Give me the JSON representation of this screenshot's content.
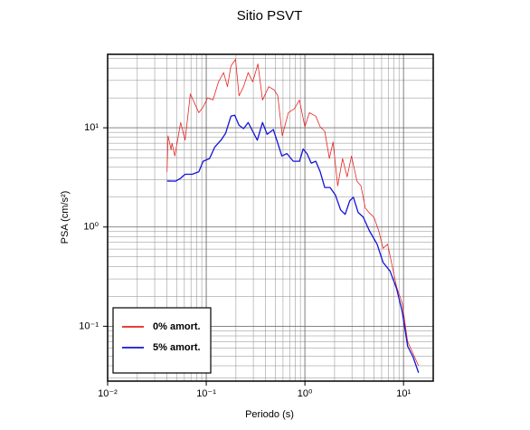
{
  "chart_data": {
    "type": "line",
    "title": "Sitio PSVT",
    "x_label": "Periodo (s)",
    "y_label": "PSA (cm/s²)",
    "xlog": true,
    "ylog": true,
    "grid": true,
    "minor_grid": true,
    "legend": "lower left",
    "xlim": [
      0.01,
      20
    ],
    "ylim": [
      0.028,
      55
    ],
    "xticks": [
      {
        "value": 0.01,
        "label": "10⁻²"
      },
      {
        "value": 0.1,
        "label": "10⁻¹"
      },
      {
        "value": 1,
        "label": "10⁰"
      },
      {
        "value": 10,
        "label": "10¹"
      }
    ],
    "yticks": [
      {
        "value": 0.1,
        "label": "10⁻¹"
      },
      {
        "value": 1,
        "label": "10⁰"
      },
      {
        "value": 10,
        "label": "10¹"
      }
    ],
    "series": [
      {
        "name": "0% amort.",
        "color": "#e8231f",
        "width": 0.8,
        "x": [
          0.04,
          0.041,
          0.044,
          0.045,
          0.048,
          0.055,
          0.061,
          0.069,
          0.077,
          0.084,
          0.093,
          0.103,
          0.117,
          0.133,
          0.15,
          0.164,
          0.178,
          0.198,
          0.215,
          0.239,
          0.266,
          0.296,
          0.334,
          0.372,
          0.43,
          0.49,
          0.531,
          0.59,
          0.68,
          0.78,
          0.88,
          1.0,
          1.11,
          1.29,
          1.43,
          1.59,
          1.77,
          1.93,
          2.15,
          2.41,
          2.68,
          2.97,
          3.37,
          3.7,
          4.1,
          4.5,
          5.0,
          5.6,
          6.2,
          6.9,
          7.7,
          8.5,
          9.7,
          11.0,
          12.5,
          14.2
        ],
        "values": [
          3.6,
          8.3,
          6.0,
          7.0,
          5.2,
          11.3,
          7.5,
          22,
          17.2,
          14.2,
          16.2,
          20,
          19.1,
          29,
          36,
          26,
          42,
          49,
          21,
          26,
          36,
          29,
          44,
          19,
          26,
          24,
          21,
          8.3,
          14.2,
          15.5,
          19,
          10.2,
          14.2,
          13.1,
          10.2,
          9.2,
          4.9,
          7.2,
          2.6,
          4.9,
          3.2,
          5.2,
          2.9,
          2.6,
          1.55,
          1.39,
          1.26,
          0.92,
          0.61,
          0.67,
          0.4,
          0.25,
          0.17,
          0.07,
          0.053,
          0.04
        ]
      },
      {
        "name": "5% amort.",
        "color": "#1414d8",
        "width": 1.3,
        "x": [
          0.04,
          0.049,
          0.055,
          0.061,
          0.072,
          0.084,
          0.093,
          0.108,
          0.122,
          0.141,
          0.157,
          0.178,
          0.194,
          0.215,
          0.239,
          0.266,
          0.296,
          0.329,
          0.372,
          0.414,
          0.479,
          0.531,
          0.584,
          0.657,
          0.762,
          0.882,
          0.96,
          1.05,
          1.16,
          1.29,
          1.43,
          1.59,
          1.8,
          2.04,
          2.3,
          2.56,
          2.85,
          3.1,
          3.47,
          3.9,
          4.5,
          5.4,
          6.2,
          7.3,
          8.5,
          9.7,
          11.0,
          12.5,
          14.2
        ],
        "values": [
          2.91,
          2.9,
          3.1,
          3.4,
          3.4,
          3.6,
          4.6,
          4.9,
          6.4,
          7.5,
          8.8,
          13.1,
          13.4,
          10.6,
          9.8,
          11.3,
          9.2,
          7.5,
          11.3,
          8.6,
          9.6,
          7.0,
          5.2,
          5.5,
          4.6,
          4.6,
          6.1,
          5.5,
          4.4,
          4.6,
          3.6,
          2.5,
          2.5,
          2.1,
          1.49,
          1.34,
          1.84,
          2.0,
          1.4,
          1.26,
          0.92,
          0.67,
          0.44,
          0.36,
          0.24,
          0.14,
          0.063,
          0.049,
          0.034
        ]
      }
    ]
  }
}
